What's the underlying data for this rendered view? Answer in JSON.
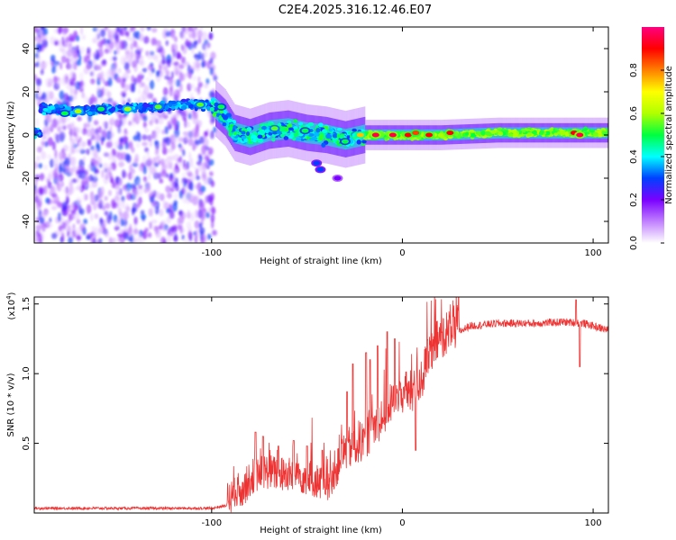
{
  "title": "C2E4.2025.316.12.46.E07",
  "chart_data": [
    {
      "type": "heatmap",
      "name": "spectrogram",
      "xlabel": "Height of straight line (km)",
      "ylabel": "Frequency (Hz)",
      "xlim": [
        -193,
        108
      ],
      "ylim": [
        -50,
        50
      ],
      "xticks": [
        -100,
        0,
        100
      ],
      "yticks": [
        -40,
        -20,
        0,
        20,
        40
      ],
      "xtick_labels": [
        "-100",
        "0",
        "100"
      ],
      "ytick_labels": [
        "-40",
        "-20",
        "0",
        "20",
        "40"
      ],
      "colorbar": {
        "label": "Normalized spectral amplitude",
        "range": [
          0,
          1
        ],
        "ticks": [
          0.0,
          0.2,
          0.4,
          0.6,
          0.8
        ],
        "tick_labels": [
          "0.0",
          "0.2",
          "0.4",
          "0.6",
          "0.8"
        ],
        "colors": [
          "#ffffff",
          "#c080ff",
          "#7a00ff",
          "#0040ff",
          "#00ffff",
          "#00ff40",
          "#b0ff00",
          "#ffff00",
          "#ff8000",
          "#ff0000",
          "#ff0080"
        ]
      },
      "ridge": [
        {
          "x": -190,
          "y": 12
        },
        {
          "x": -170,
          "y": 11
        },
        {
          "x": -150,
          "y": 12
        },
        {
          "x": -130,
          "y": 13
        },
        {
          "x": -110,
          "y": 14
        },
        {
          "x": -100,
          "y": 14
        },
        {
          "x": -93,
          "y": 8
        },
        {
          "x": -88,
          "y": 1
        },
        {
          "x": -80,
          "y": -1
        },
        {
          "x": -70,
          "y": 2
        },
        {
          "x": -60,
          "y": 3
        },
        {
          "x": -50,
          "y": 1
        },
        {
          "x": -40,
          "y": 0
        },
        {
          "x": -30,
          "y": -2
        },
        {
          "x": -20,
          "y": 0
        },
        {
          "x": -10,
          "y": 0
        },
        {
          "x": 0,
          "y": 0
        },
        {
          "x": 20,
          "y": 0
        },
        {
          "x": 50,
          "y": 1
        },
        {
          "x": 80,
          "y": 1
        },
        {
          "x": 108,
          "y": 1
        }
      ],
      "noise_region_x": [
        -193,
        -98
      ],
      "blobs": [
        {
          "x": -177,
          "y": 10,
          "v": 0.5
        },
        {
          "x": -170,
          "y": 11,
          "v": 0.6
        },
        {
          "x": -158,
          "y": 12,
          "v": 0.5
        },
        {
          "x": -144,
          "y": 12,
          "v": 0.6
        },
        {
          "x": -128,
          "y": 13,
          "v": 0.55
        },
        {
          "x": -106,
          "y": 14,
          "v": 0.55
        },
        {
          "x": -95,
          "y": 13,
          "v": 0.5
        },
        {
          "x": -67,
          "y": 3,
          "v": 0.55
        },
        {
          "x": -51,
          "y": 2,
          "v": 0.5
        },
        {
          "x": -30,
          "y": -3,
          "v": 0.5
        },
        {
          "x": -22,
          "y": 0,
          "v": 0.75
        },
        {
          "x": -14,
          "y": 0,
          "v": 0.95
        },
        {
          "x": -5,
          "y": 0,
          "v": 0.95
        },
        {
          "x": 3,
          "y": 0,
          "v": 0.9
        },
        {
          "x": 7,
          "y": 1,
          "v": 0.85
        },
        {
          "x": 14,
          "y": 0,
          "v": 0.9
        },
        {
          "x": 25,
          "y": 1,
          "v": 0.9
        },
        {
          "x": 90,
          "y": 1,
          "v": 0.9
        },
        {
          "x": 93,
          "y": 0,
          "v": 0.95
        },
        {
          "x": -45,
          "y": -13,
          "v": 0.3
        },
        {
          "x": -43,
          "y": -16,
          "v": 0.3
        },
        {
          "x": -34,
          "y": -20,
          "v": 0.2
        }
      ]
    },
    {
      "type": "line",
      "name": "snr",
      "xlabel": "Height of straight line (km)",
      "ylabel": "SNR (10 * v/v)",
      "multiplier_label": "(x10",
      "multiplier_exp": "4",
      "multiplier_close": ")",
      "xlim": [
        -193,
        108
      ],
      "ylim": [
        0,
        1.55
      ],
      "xticks": [
        -100,
        0,
        100
      ],
      "yticks": [
        0.5,
        1.0,
        1.5
      ],
      "xtick_labels": [
        "-100",
        "0",
        "100"
      ],
      "ytick_labels": [
        "0.5",
        "1.0",
        "1.5"
      ],
      "color": "#ee3333",
      "trend": [
        {
          "x": -193,
          "y": 0.03
        },
        {
          "x": -100,
          "y": 0.03
        },
        {
          "x": -92,
          "y": 0.05
        },
        {
          "x": -85,
          "y": 0.1
        },
        {
          "x": -78,
          "y": 0.22
        },
        {
          "x": -72,
          "y": 0.25
        },
        {
          "x": -65,
          "y": 0.23
        },
        {
          "x": -55,
          "y": 0.22
        },
        {
          "x": -45,
          "y": 0.18
        },
        {
          "x": -37,
          "y": 0.15
        },
        {
          "x": -33,
          "y": 0.35
        },
        {
          "x": -28,
          "y": 0.4
        },
        {
          "x": -22,
          "y": 0.45
        },
        {
          "x": -15,
          "y": 0.55
        },
        {
          "x": -10,
          "y": 0.65
        },
        {
          "x": -5,
          "y": 0.75
        },
        {
          "x": 0,
          "y": 0.8
        },
        {
          "x": 5,
          "y": 0.8
        },
        {
          "x": 10,
          "y": 0.9
        },
        {
          "x": 15,
          "y": 1.1
        },
        {
          "x": 20,
          "y": 1.2
        },
        {
          "x": 25,
          "y": 1.25
        },
        {
          "x": 35,
          "y": 1.33
        },
        {
          "x": 50,
          "y": 1.35
        },
        {
          "x": 70,
          "y": 1.35
        },
        {
          "x": 85,
          "y": 1.36
        },
        {
          "x": 95,
          "y": 1.35
        },
        {
          "x": 108,
          "y": 1.3
        }
      ],
      "spikes": [
        {
          "x": -77,
          "y": 0.58
        },
        {
          "x": -73,
          "y": 0.55
        },
        {
          "x": -65,
          "y": 0.48
        },
        {
          "x": -57,
          "y": 0.52
        },
        {
          "x": -50,
          "y": 0.48
        },
        {
          "x": -42,
          "y": 0.45
        },
        {
          "x": -29,
          "y": 0.87
        },
        {
          "x": -26,
          "y": 1.07
        },
        {
          "x": -19,
          "y": 1.15
        },
        {
          "x": -17,
          "y": 1.1
        },
        {
          "x": -13,
          "y": 1.2
        },
        {
          "x": -8,
          "y": 1.3
        },
        {
          "x": -4,
          "y": 1.25
        },
        {
          "x": 7,
          "y": 1.33
        },
        {
          "x": 91,
          "y": 1.53
        }
      ],
      "dips": [
        {
          "x": 7,
          "y": 0.45
        },
        {
          "x": 93,
          "y": 1.05
        }
      ]
    }
  ]
}
